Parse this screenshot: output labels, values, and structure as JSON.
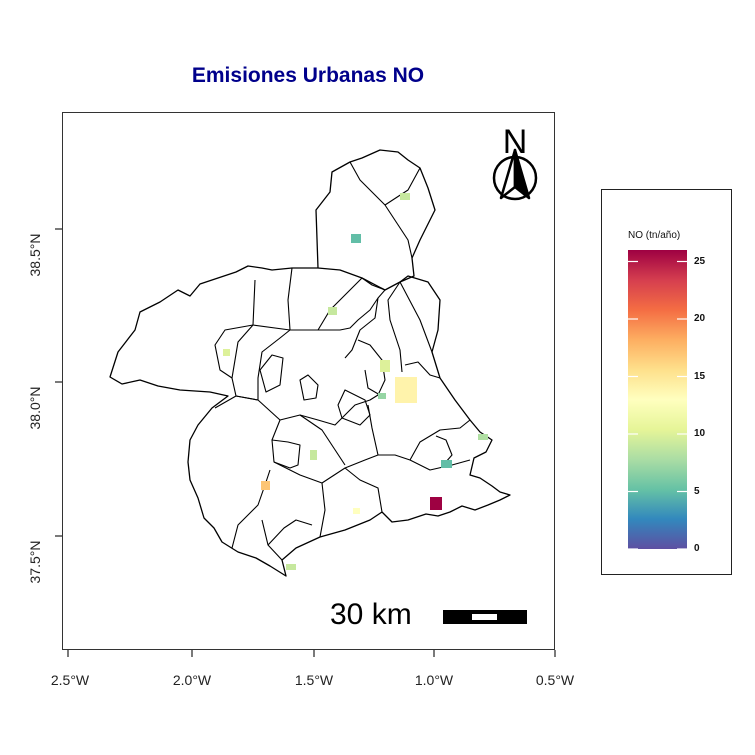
{
  "title": "Emisiones Urbanas NO",
  "legend": {
    "title": "NO (tn/año)",
    "ticks": [
      "25",
      "20",
      "15",
      "10",
      "5",
      "0"
    ],
    "range": [
      0,
      26
    ]
  },
  "axes": {
    "x_ticks": [
      "2.5°W",
      "2.0°W",
      "1.5°W",
      "1.0°W",
      "0.5°W"
    ],
    "y_ticks": [
      "38.5°N",
      "38.0°N",
      "37.5°N"
    ]
  },
  "north_arrow": {
    "label": "N"
  },
  "scale_bar": {
    "label": "30 km"
  },
  "map_data": {
    "emission_cells": [
      {
        "value": 9
      },
      {
        "value": 5
      },
      {
        "value": 9
      },
      {
        "value": 10
      },
      {
        "value": 10
      },
      {
        "value": 14
      },
      {
        "value": 7
      },
      {
        "value": 9
      },
      {
        "value": 5
      },
      {
        "value": 17
      },
      {
        "value": 13
      },
      {
        "value": 26
      },
      {
        "value": 9
      },
      {
        "value": 8
      }
    ]
  }
}
